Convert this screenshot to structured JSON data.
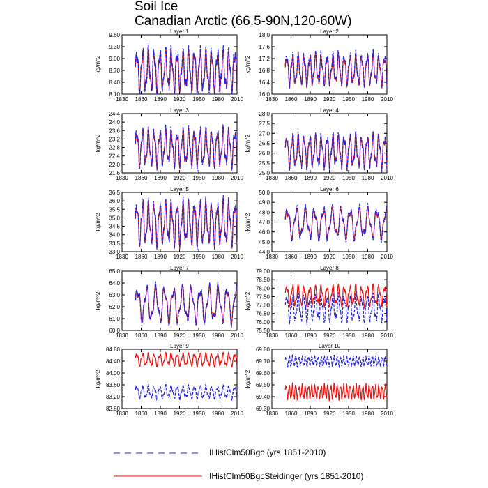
{
  "title_line1": "Soil Ice",
  "title_line2": "Canadian Arctic (66.5-90N,120-60W)",
  "colors": {
    "bgc": "#2222dd",
    "steidinger": "#ee1111"
  },
  "legend": [
    {
      "label": "IHistClm50Bgc (yrs 1851-2010)",
      "color": "#2222dd",
      "dashed": true
    },
    {
      "label": "IHistClm50BgcSteidinger (yrs 1851-2010)",
      "color": "#ee1111",
      "dashed": false
    }
  ],
  "chart_data": [
    {
      "type": "line",
      "title": "Layer 1",
      "ylabel": "kg/m^2",
      "xlim": [
        1830,
        2010
      ],
      "ylim": [
        8.1,
        9.6
      ],
      "xticks": [
        1830,
        1860,
        1890,
        1920,
        1950,
        1980,
        2010
      ],
      "yticks": [
        "9.60",
        "9.30",
        "9.00",
        "8.70",
        "8.40",
        "8.10"
      ],
      "series": [
        {
          "key": "bgc",
          "x_range": [
            1851,
            2010
          ],
          "period": 9,
          "mean": 8.7,
          "amp": 0.45,
          "noise": 0.15
        },
        {
          "key": "steidinger",
          "x_range": [
            1851,
            2010
          ],
          "period": 9,
          "mean": 8.68,
          "amp": 0.42,
          "noise": 0.12
        }
      ]
    },
    {
      "type": "line",
      "title": "Layer 2",
      "ylabel": "kg/m^2",
      "xlim": [
        1830,
        2010
      ],
      "ylim": [
        16.0,
        18.0
      ],
      "xticks": [
        1830,
        1860,
        1890,
        1920,
        1950,
        1980,
        2010
      ],
      "yticks": [
        "18.0",
        "17.6",
        "17.2",
        "16.8",
        "16.4",
        "16.0"
      ],
      "series": [
        {
          "key": "bgc",
          "x_range": [
            1851,
            2010
          ],
          "period": 9,
          "mean": 16.85,
          "amp": 0.45,
          "noise": 0.12
        },
        {
          "key": "steidinger",
          "x_range": [
            1851,
            2010
          ],
          "period": 9,
          "mean": 16.8,
          "amp": 0.42,
          "noise": 0.1
        }
      ]
    },
    {
      "type": "line",
      "title": "Layer 3",
      "ylabel": "kg/m^2",
      "xlim": [
        1830,
        2010
      ],
      "ylim": [
        21.6,
        24.4
      ],
      "xticks": [
        1830,
        1860,
        1890,
        1920,
        1950,
        1980,
        2010
      ],
      "yticks": [
        "24.4",
        "24.0",
        "23.6",
        "23.2",
        "22.8",
        "22.4",
        "22.0",
        "21.6"
      ],
      "series": [
        {
          "key": "bgc",
          "x_range": [
            1851,
            2010
          ],
          "period": 9,
          "mean": 22.8,
          "amp": 0.75,
          "noise": 0.2
        },
        {
          "key": "steidinger",
          "x_range": [
            1851,
            2010
          ],
          "period": 9,
          "mean": 22.78,
          "amp": 0.7,
          "noise": 0.18
        }
      ]
    },
    {
      "type": "line",
      "title": "Layer 4",
      "ylabel": "kg/m^2",
      "xlim": [
        1830,
        2010
      ],
      "ylim": [
        25.0,
        28.0
      ],
      "xticks": [
        1830,
        1860,
        1890,
        1920,
        1950,
        1980,
        2010
      ],
      "yticks": [
        "28.0",
        "27.5",
        "27.0",
        "26.5",
        "26.0",
        "25.5",
        "25.0"
      ],
      "series": [
        {
          "key": "bgc",
          "x_range": [
            1851,
            2010
          ],
          "period": 9,
          "mean": 26.1,
          "amp": 0.7,
          "noise": 0.2
        },
        {
          "key": "steidinger",
          "x_range": [
            1851,
            2010
          ],
          "period": 9,
          "mean": 26.1,
          "amp": 0.65,
          "noise": 0.18
        }
      ]
    },
    {
      "type": "line",
      "title": "Layer 5",
      "ylabel": "kg/m^2",
      "xlim": [
        1830,
        2010
      ],
      "ylim": [
        33.0,
        36.5
      ],
      "xticks": [
        1830,
        1860,
        1890,
        1920,
        1950,
        1980,
        2010
      ],
      "yticks": [
        "36.5",
        "36.0",
        "35.5",
        "35.0",
        "34.5",
        "34.0",
        "33.5",
        "33.0"
      ],
      "series": [
        {
          "key": "bgc",
          "x_range": [
            1851,
            2010
          ],
          "period": 9,
          "mean": 34.7,
          "amp": 1.1,
          "noise": 0.25
        },
        {
          "key": "steidinger",
          "x_range": [
            1851,
            2010
          ],
          "period": 9,
          "mean": 34.65,
          "amp": 1.05,
          "noise": 0.22
        }
      ]
    },
    {
      "type": "line",
      "title": "Layer 6",
      "ylabel": "kg/m^2",
      "xlim": [
        1830,
        2010
      ],
      "ylim": [
        44.0,
        50.0
      ],
      "xticks": [
        1830,
        1860,
        1890,
        1920,
        1950,
        1980,
        2010
      ],
      "yticks": [
        "50.0",
        "49.0",
        "48.0",
        "47.0",
        "46.0",
        "45.0",
        "44.0"
      ],
      "series": [
        {
          "key": "bgc",
          "x_range": [
            1851,
            2010
          ],
          "period": 14,
          "mean": 46.9,
          "amp": 1.4,
          "noise": 0.3
        },
        {
          "key": "steidinger",
          "x_range": [
            1851,
            2010
          ],
          "period": 14,
          "mean": 46.9,
          "amp": 1.2,
          "noise": 0.25
        }
      ]
    },
    {
      "type": "line",
      "title": "Layer 7",
      "ylabel": "kg/m^2",
      "xlim": [
        1830,
        2010
      ],
      "ylim": [
        60.0,
        65.0
      ],
      "xticks": [
        1830,
        1860,
        1890,
        1920,
        1950,
        1980,
        2010
      ],
      "yticks": [
        "65.0",
        "64.0",
        "63.0",
        "62.0",
        "61.0",
        "60.0"
      ],
      "series": [
        {
          "key": "bgc",
          "x_range": [
            1851,
            2010
          ],
          "period": 14,
          "mean": 62.2,
          "amp": 1.3,
          "noise": 0.3
        },
        {
          "key": "steidinger",
          "x_range": [
            1851,
            2010
          ],
          "period": 14,
          "mean": 62.2,
          "amp": 1.2,
          "noise": 0.25
        }
      ]
    },
    {
      "type": "line",
      "title": "Layer 8",
      "ylabel": "kg/m^2",
      "xlim": [
        1830,
        2010
      ],
      "ylim": [
        75.5,
        79.0
      ],
      "xticks": [
        1830,
        1860,
        1890,
        1920,
        1950,
        1980,
        2010
      ],
      "yticks": [
        "79.00",
        "78.50",
        "78.00",
        "77.50",
        "77.00",
        "76.50",
        "76.00",
        "75.50"
      ],
      "series": [
        {
          "key": "bgc",
          "x_range": [
            1851,
            2010
          ],
          "period": 9,
          "mean": 76.8,
          "amp": 0.65,
          "noise": 0.2
        },
        {
          "key": "steidinger",
          "x_range": [
            1851,
            2010
          ],
          "period": 9,
          "mean": 77.55,
          "amp": 0.5,
          "noise": 0.15
        }
      ]
    },
    {
      "type": "line",
      "title": "Layer 9",
      "ylabel": "kg/m^2",
      "xlim": [
        1830,
        2010
      ],
      "ylim": [
        82.8,
        84.8
      ],
      "xticks": [
        1830,
        1860,
        1890,
        1920,
        1950,
        1980,
        2010
      ],
      "yticks": [
        "84.80",
        "84.40",
        "84.00",
        "83.60",
        "83.20",
        "82.80"
      ],
      "series": [
        {
          "key": "bgc",
          "x_range": [
            1851,
            2010
          ],
          "period": 9,
          "mean": 83.35,
          "amp": 0.18,
          "noise": 0.05
        },
        {
          "key": "steidinger",
          "x_range": [
            1851,
            2010
          ],
          "period": 9,
          "mean": 84.45,
          "amp": 0.18,
          "noise": 0.04
        }
      ]
    },
    {
      "type": "line",
      "title": "Layer 10",
      "ylabel": "kg/m^2",
      "xlim": [
        1830,
        2010
      ],
      "ylim": [
        69.3,
        69.8
      ],
      "xticks": [
        1830,
        1860,
        1890,
        1920,
        1950,
        1980,
        2010
      ],
      "yticks": [
        "69.80",
        "69.70",
        "69.60",
        "69.50",
        "69.40",
        "69.30"
      ],
      "series": [
        {
          "key": "bgc",
          "x_range": [
            1851,
            2010
          ],
          "period": 5,
          "mean": 69.7,
          "amp": 0.035,
          "noise": 0.012
        },
        {
          "key": "steidinger",
          "x_range": [
            1851,
            2010
          ],
          "period": 5,
          "mean": 69.44,
          "amp": 0.05,
          "noise": 0.015
        }
      ]
    }
  ]
}
